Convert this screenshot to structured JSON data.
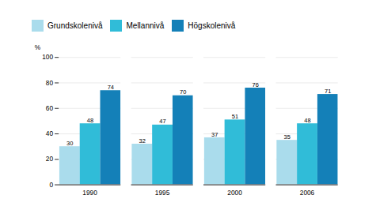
{
  "chart_data": {
    "type": "bar",
    "y_label": "%",
    "categories": [
      "1990",
      "1995",
      "2000",
      "2006"
    ],
    "series": [
      {
        "name": "Grundskolenivå",
        "color": "#aadcec",
        "values": [
          30,
          32,
          37,
          35
        ]
      },
      {
        "name": "Mellannivå",
        "color": "#30bcd8",
        "values": [
          48,
          47,
          51,
          48
        ]
      },
      {
        "name": "Högskolenivå",
        "color": "#1480b8",
        "values": [
          74,
          70,
          76,
          71
        ]
      }
    ],
    "ylim": [
      0,
      100
    ],
    "yticks": [
      0,
      20,
      40,
      60,
      80,
      100
    ],
    "grid": true,
    "legend": "upper left",
    "data_labels": true
  }
}
